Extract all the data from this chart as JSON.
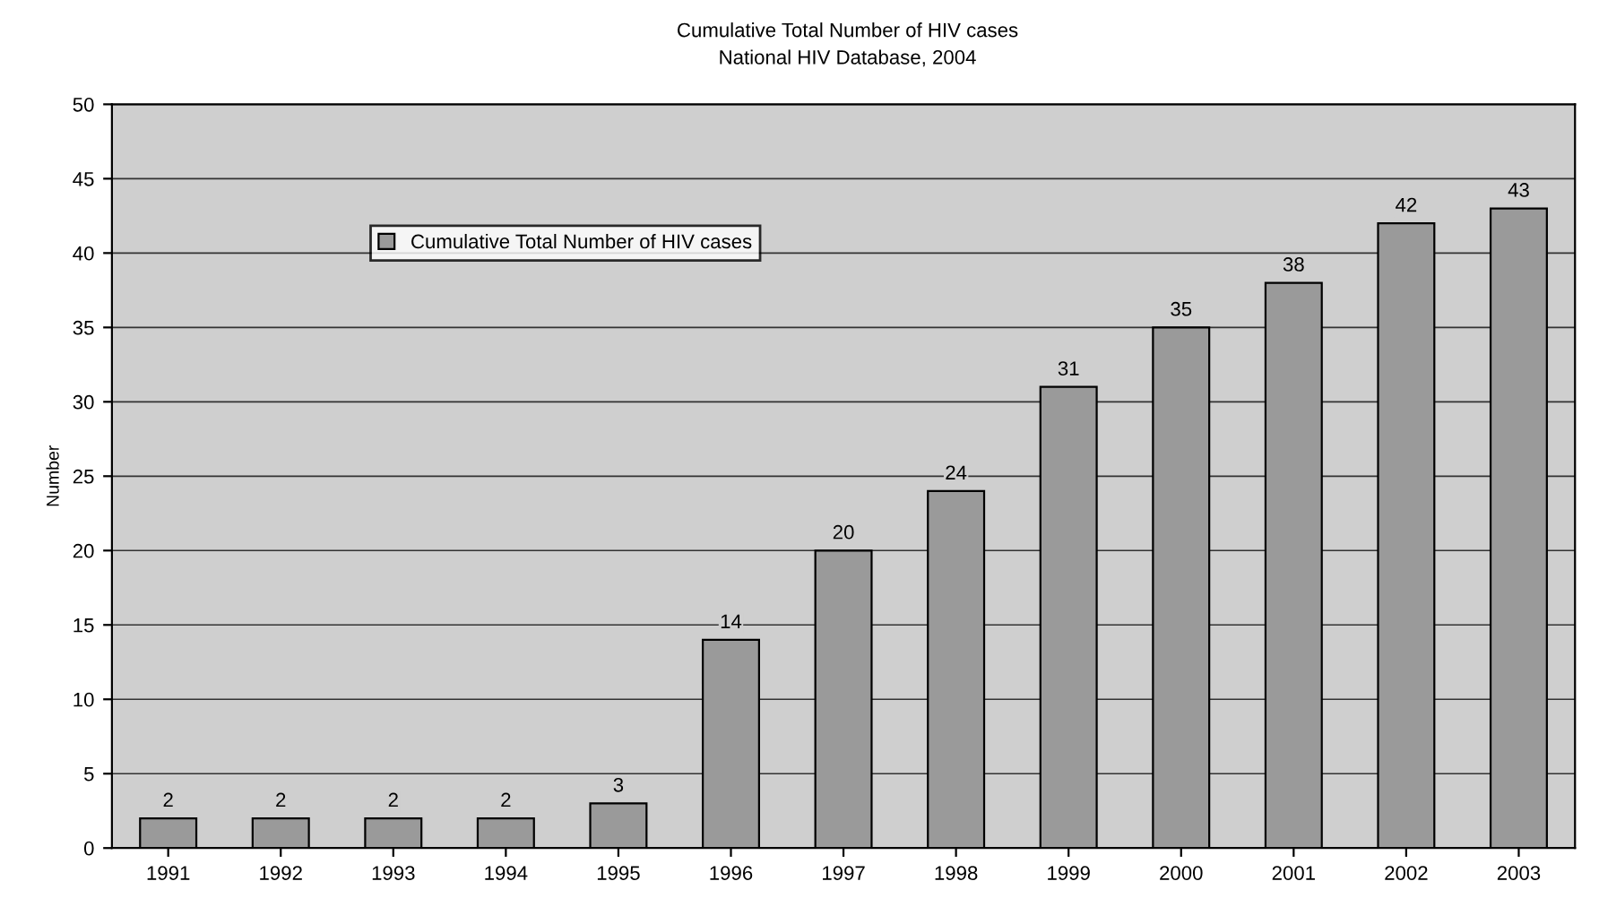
{
  "chart_data": {
    "type": "bar",
    "title": "Cumulative Total Number of HIV cases",
    "subtitle": "National HIV Database, 2004",
    "ylabel": "Number",
    "categories": [
      "1991",
      "1992",
      "1993",
      "1994",
      "1995",
      "1996",
      "1997",
      "1998",
      "1999",
      "2000",
      "2001",
      "2002",
      "2003"
    ],
    "series": [
      {
        "name": "Cumulative Total Number of HIV cases",
        "color": "#9a9a9a",
        "values": [
          2,
          2,
          2,
          2,
          3,
          14,
          20,
          24,
          31,
          35,
          38,
          42,
          43
        ]
      }
    ],
    "ylim": [
      0,
      50
    ],
    "yticks": [
      0,
      5,
      10,
      15,
      20,
      25,
      30,
      35,
      40,
      45,
      50
    ],
    "grid": "y",
    "legend": "top left",
    "data_labels": true
  }
}
